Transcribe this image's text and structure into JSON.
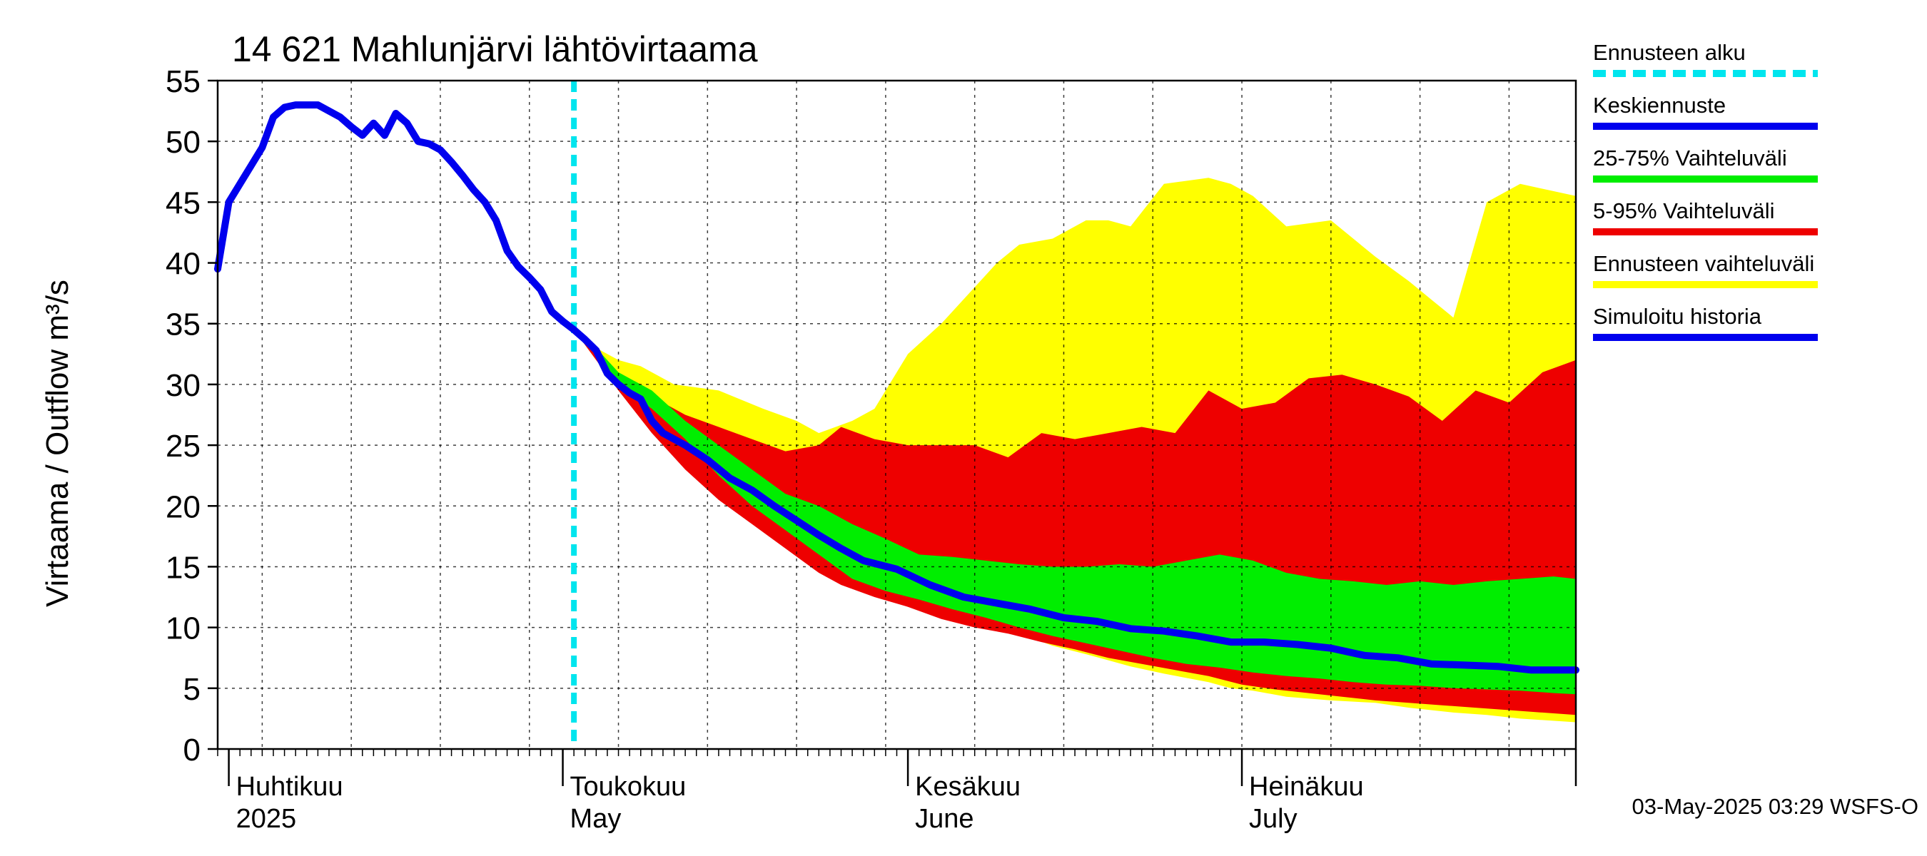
{
  "chart_data": {
    "type": "area",
    "title": "14 621 Mahlunjärvi lähtövirtaama",
    "ylabel": "Virtaama / Outflow    m³/s",
    "ylim": [
      0,
      55
    ],
    "yticks": [
      0,
      5,
      10,
      15,
      20,
      25,
      30,
      35,
      40,
      45,
      50,
      55
    ],
    "x_start": "2025-03-31",
    "x_end": "2025-07-31",
    "forecast_start": "2025-05-02",
    "month_labels": [
      {
        "fi": "Huhtikuu",
        "en": "2025",
        "date": "2025-04-01"
      },
      {
        "fi": "Toukokuu",
        "en": "May",
        "date": "2025-05-01"
      },
      {
        "fi": "Kesäkuu",
        "en": "June",
        "date": "2025-06-01"
      },
      {
        "fi": "Heinäkuu",
        "en": "July",
        "date": "2025-07-01"
      }
    ],
    "legend": [
      {
        "label": "Ennusteen alku",
        "color": "#00e5ee",
        "style": "dashed"
      },
      {
        "label": "Keskiennuste",
        "color": "#0000ee",
        "style": "solid"
      },
      {
        "label": "25-75% Vaihteluväli",
        "color": "#00ee00",
        "style": "solid"
      },
      {
        "label": "5-95% Vaihteluväli",
        "color": "#ee0000",
        "style": "solid"
      },
      {
        "label": "Ennusteen vaihteluväli",
        "color": "#ffff00",
        "style": "solid"
      },
      {
        "label": "Simuloitu historia",
        "color": "#0000ee",
        "style": "solid"
      }
    ],
    "series": [
      {
        "name": "Simuloitu historia",
        "points": [
          [
            "2025-03-31",
            39.5
          ],
          [
            "2025-04-01",
            45.0
          ],
          [
            "2025-04-02",
            46.5
          ],
          [
            "2025-04-03",
            48.0
          ],
          [
            "2025-04-04",
            49.5
          ],
          [
            "2025-04-05",
            52.0
          ],
          [
            "2025-04-06",
            52.8
          ],
          [
            "2025-04-07",
            53.0
          ],
          [
            "2025-04-08",
            53.0
          ],
          [
            "2025-04-09",
            53.0
          ],
          [
            "2025-04-10",
            52.5
          ],
          [
            "2025-04-11",
            52.0
          ],
          [
            "2025-04-12",
            51.2
          ],
          [
            "2025-04-13",
            50.5
          ],
          [
            "2025-04-14",
            51.5
          ],
          [
            "2025-04-15",
            50.5
          ],
          [
            "2025-04-16",
            52.3
          ],
          [
            "2025-04-17",
            51.5
          ],
          [
            "2025-04-18",
            50.0
          ],
          [
            "2025-04-19",
            49.8
          ],
          [
            "2025-04-20",
            49.3
          ],
          [
            "2025-04-21",
            48.3
          ],
          [
            "2025-04-22",
            47.2
          ],
          [
            "2025-04-23",
            46.0
          ],
          [
            "2025-04-24",
            45.0
          ],
          [
            "2025-04-25",
            43.5
          ],
          [
            "2025-04-26",
            41.0
          ],
          [
            "2025-04-27",
            39.7
          ],
          [
            "2025-04-28",
            38.8
          ],
          [
            "2025-04-29",
            37.8
          ],
          [
            "2025-04-30",
            36.0
          ],
          [
            "2025-05-01",
            35.2
          ],
          [
            "2025-05-02",
            34.5
          ]
        ]
      },
      {
        "name": "Keskiennuste",
        "points": [
          [
            "2025-05-02",
            34.5
          ],
          [
            "2025-05-03",
            33.7
          ],
          [
            "2025-05-04",
            32.8
          ],
          [
            "2025-05-05",
            30.9
          ],
          [
            "2025-05-06",
            30.0
          ],
          [
            "2025-05-07",
            29.3
          ],
          [
            "2025-05-08",
            28.8
          ],
          [
            "2025-05-09",
            27.0
          ],
          [
            "2025-05-10",
            26.0
          ],
          [
            "2025-05-12",
            25.0
          ],
          [
            "2025-05-14",
            23.8
          ],
          [
            "2025-05-16",
            22.3
          ],
          [
            "2025-05-18",
            21.3
          ],
          [
            "2025-05-20",
            20.0
          ],
          [
            "2025-05-22",
            18.8
          ],
          [
            "2025-05-24",
            17.6
          ],
          [
            "2025-05-26",
            16.5
          ],
          [
            "2025-05-28",
            15.5
          ],
          [
            "2025-05-31",
            14.8
          ],
          [
            "2025-06-03",
            13.5
          ],
          [
            "2025-06-06",
            12.5
          ],
          [
            "2025-06-09",
            12.0
          ],
          [
            "2025-06-12",
            11.5
          ],
          [
            "2025-06-15",
            10.8
          ],
          [
            "2025-06-18",
            10.5
          ],
          [
            "2025-06-21",
            9.9
          ],
          [
            "2025-06-24",
            9.7
          ],
          [
            "2025-06-27",
            9.3
          ],
          [
            "2025-06-30",
            8.8
          ],
          [
            "2025-07-03",
            8.8
          ],
          [
            "2025-07-06",
            8.6
          ],
          [
            "2025-07-09",
            8.3
          ],
          [
            "2025-07-12",
            7.7
          ],
          [
            "2025-07-15",
            7.5
          ],
          [
            "2025-07-18",
            7.0
          ],
          [
            "2025-07-21",
            6.9
          ],
          [
            "2025-07-24",
            6.8
          ],
          [
            "2025-07-27",
            6.5
          ],
          [
            "2025-07-31",
            6.5
          ]
        ]
      },
      {
        "name": "Ennusteen vaihteluväli",
        "x": [
          "2025-05-02",
          "2025-05-04",
          "2025-05-06",
          "2025-05-08",
          "2025-05-11",
          "2025-05-15",
          "2025-05-19",
          "2025-05-22",
          "2025-05-24",
          "2025-05-27",
          "2025-05-29",
          "2025-06-01",
          "2025-06-04",
          "2025-06-07",
          "2025-06-09",
          "2025-06-11",
          "2025-06-14",
          "2025-06-17",
          "2025-06-19",
          "2025-06-21",
          "2025-06-24",
          "2025-06-28",
          "2025-06-30",
          "2025-07-02",
          "2025-07-05",
          "2025-07-09",
          "2025-07-13",
          "2025-07-16",
          "2025-07-18",
          "2025-07-20",
          "2025-07-23",
          "2025-07-26",
          "2025-07-31"
        ],
        "upper": [
          34.5,
          33.0,
          32.0,
          31.5,
          30.0,
          29.5,
          28.0,
          27.0,
          26.0,
          27.0,
          28.0,
          32.5,
          35.0,
          38.0,
          40.0,
          41.5,
          42.0,
          43.5,
          43.5,
          43.0,
          46.5,
          47.0,
          46.5,
          45.5,
          43.0,
          43.5,
          40.5,
          38.5,
          37.0,
          35.5,
          45.0,
          46.5,
          45.5
        ],
        "lower": [
          34.5,
          32.0,
          30.0,
          29.0,
          26.5,
          23.0,
          19.5,
          17.0,
          15.5,
          14.0,
          13.0,
          12.0,
          11.0,
          10.5,
          10.0,
          9.5,
          8.5,
          7.8,
          7.3,
          6.8,
          6.2,
          5.5,
          5.0,
          4.8,
          4.3,
          4.0,
          3.8,
          3.4,
          3.2,
          3.0,
          2.8,
          2.5,
          2.2
        ]
      },
      {
        "name": "5-95% Vaihteluväli",
        "x": [
          "2025-05-02",
          "2025-05-04",
          "2025-05-06",
          "2025-05-09",
          "2025-05-12",
          "2025-05-15",
          "2025-05-18",
          "2025-05-21",
          "2025-05-24",
          "2025-05-26",
          "2025-05-29",
          "2025-06-01",
          "2025-06-04",
          "2025-06-07",
          "2025-06-10",
          "2025-06-13",
          "2025-06-16",
          "2025-06-19",
          "2025-06-22",
          "2025-06-25",
          "2025-06-28",
          "2025-07-01",
          "2025-07-04",
          "2025-07-07",
          "2025-07-10",
          "2025-07-13",
          "2025-07-16",
          "2025-07-19",
          "2025-07-22",
          "2025-07-25",
          "2025-07-28",
          "2025-07-31"
        ],
        "upper": [
          34.5,
          32.5,
          30.5,
          29.0,
          27.5,
          26.5,
          25.5,
          24.5,
          25.0,
          26.5,
          25.5,
          25.0,
          25.0,
          25.0,
          24.0,
          26.0,
          25.5,
          26.0,
          26.5,
          26.0,
          29.5,
          28.0,
          28.5,
          30.5,
          30.8,
          30.0,
          29.0,
          27.0,
          29.5,
          28.5,
          31.0,
          32.0
        ],
        "lower": [
          34.5,
          32.0,
          29.5,
          26.0,
          23.0,
          20.5,
          18.5,
          16.5,
          14.5,
          13.5,
          12.5,
          11.7,
          10.7,
          10.0,
          9.5,
          8.8,
          8.2,
          7.5,
          7.0,
          6.5,
          6.0,
          5.3,
          4.9,
          4.6,
          4.3,
          4.0,
          3.8,
          3.6,
          3.4,
          3.2,
          3.0,
          2.8
        ]
      },
      {
        "name": "25-75% Vaihteluväli",
        "x": [
          "2025-05-02",
          "2025-05-04",
          "2025-05-06",
          "2025-05-09",
          "2025-05-12",
          "2025-05-15",
          "2025-05-18",
          "2025-05-21",
          "2025-05-24",
          "2025-05-27",
          "2025-05-30",
          "2025-06-02",
          "2025-06-05",
          "2025-06-08",
          "2025-06-11",
          "2025-06-14",
          "2025-06-17",
          "2025-06-20",
          "2025-06-23",
          "2025-06-26",
          "2025-06-29",
          "2025-07-02",
          "2025-07-05",
          "2025-07-08",
          "2025-07-11",
          "2025-07-14",
          "2025-07-17",
          "2025-07-20",
          "2025-07-23",
          "2025-07-26",
          "2025-07-29",
          "2025-07-31"
        ],
        "upper": [
          34.5,
          33.0,
          31.0,
          29.5,
          27.0,
          25.0,
          23.0,
          21.0,
          20.0,
          18.5,
          17.3,
          16.0,
          15.8,
          15.5,
          15.2,
          15.0,
          15.0,
          15.2,
          15.0,
          15.5,
          16.0,
          15.5,
          14.5,
          14.0,
          13.8,
          13.5,
          13.8,
          13.5,
          13.8,
          14.0,
          14.2,
          14.0
        ],
        "lower": [
          34.5,
          32.5,
          30.0,
          28.0,
          25.5,
          22.5,
          20.0,
          18.0,
          16.0,
          14.0,
          13.0,
          12.3,
          11.5,
          10.8,
          10.0,
          9.3,
          8.7,
          8.1,
          7.5,
          7.0,
          6.7,
          6.3,
          6.0,
          5.8,
          5.5,
          5.3,
          5.2,
          5.0,
          4.9,
          4.8,
          4.6,
          4.5
        ]
      }
    ],
    "grid": true,
    "legend_position": "right",
    "footer": "03-May-2025 03:29 WSFS-O"
  }
}
